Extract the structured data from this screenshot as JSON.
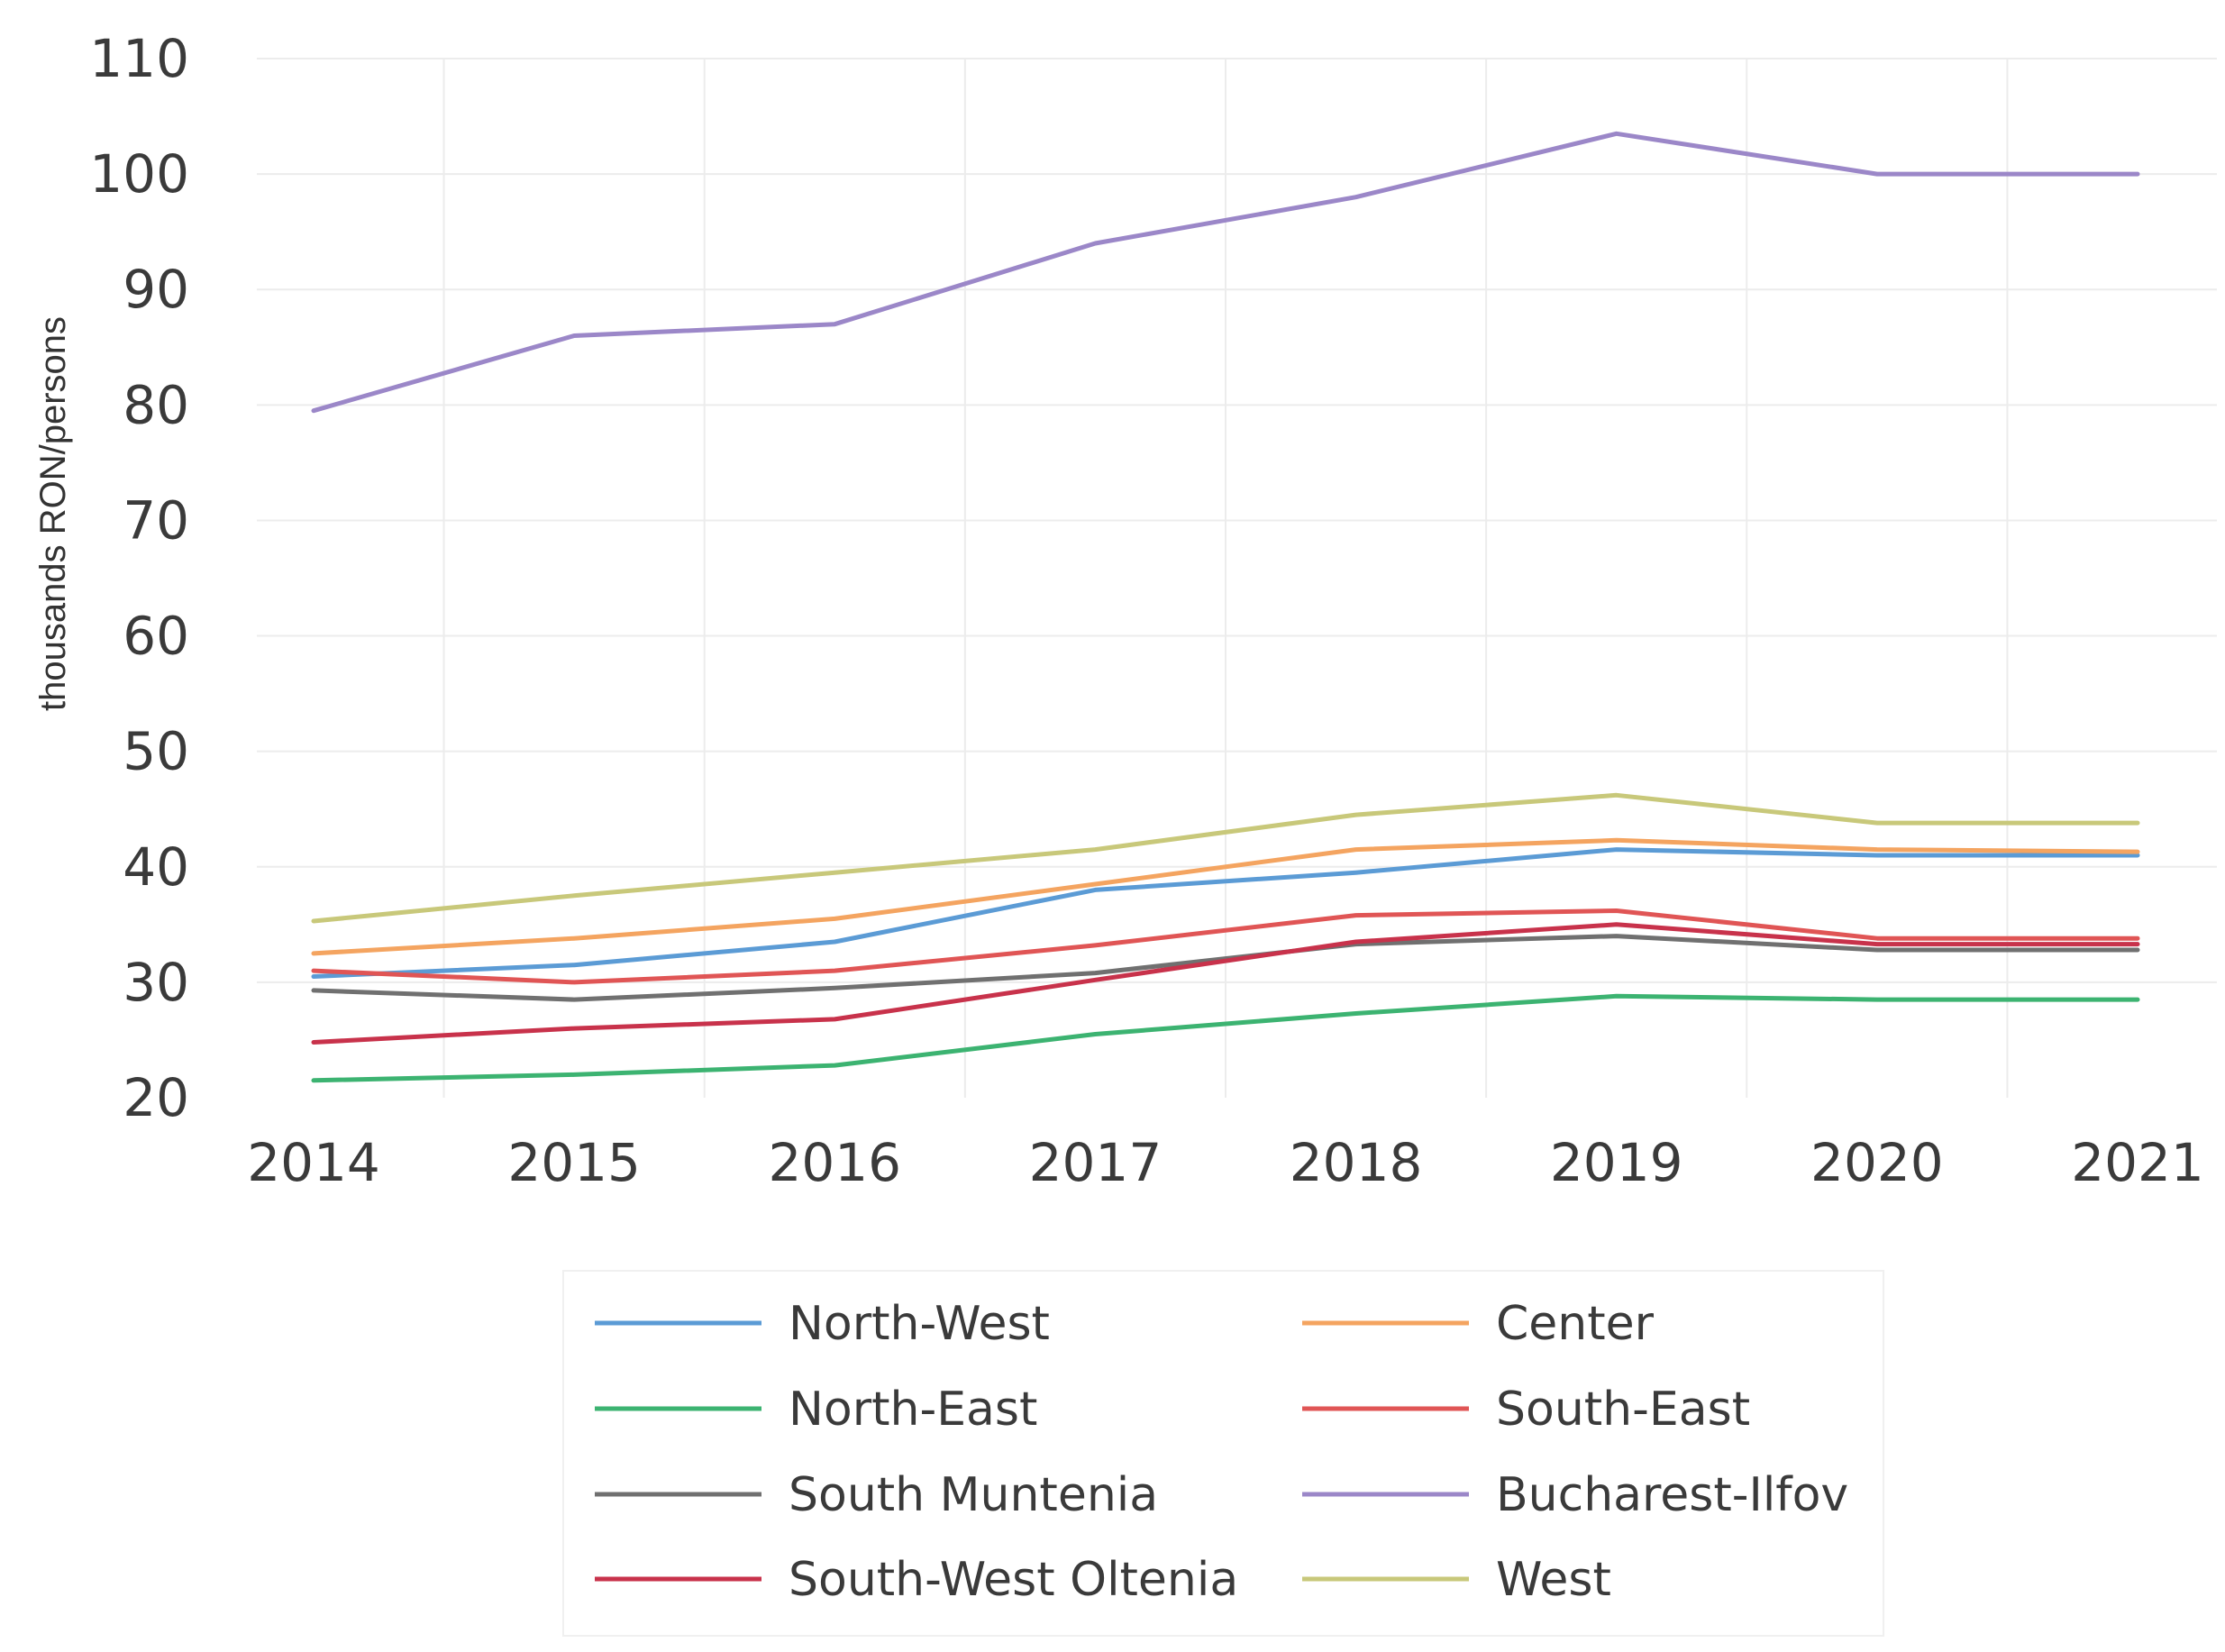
{
  "chart_data": {
    "type": "line",
    "title": "",
    "xlabel": "",
    "ylabel": "thousands RON/persons",
    "ylim": [
      20,
      110
    ],
    "yticks": [
      20,
      30,
      40,
      50,
      60,
      70,
      80,
      90,
      100,
      110
    ],
    "x": [
      "2014",
      "2015",
      "2016",
      "2017",
      "2018",
      "2019",
      "2020",
      "2021"
    ],
    "grid": true,
    "legend_position": "bottom",
    "series": [
      {
        "name": "North-West",
        "color": "#5b9bd5",
        "values": [
          30.5,
          31.5,
          33.5,
          38,
          39.5,
          41.5,
          41,
          41
        ]
      },
      {
        "name": "Center",
        "color": "#f4a460",
        "values": [
          32.5,
          33.8,
          35.5,
          38.5,
          41.5,
          42.3,
          41.5,
          41.3
        ]
      },
      {
        "name": "North-East",
        "color": "#3cb371",
        "values": [
          21.5,
          22,
          22.8,
          25.5,
          27.3,
          28.8,
          28.5,
          28.5
        ]
      },
      {
        "name": "South-East",
        "color": "#e05555",
        "values": [
          31,
          30,
          31,
          33.2,
          35.8,
          36.2,
          33.8,
          33.8
        ]
      },
      {
        "name": "South Muntenia",
        "color": "#707070",
        "values": [
          29.3,
          28.5,
          29.5,
          30.8,
          33.3,
          34,
          32.8,
          32.8
        ]
      },
      {
        "name": "Bucharest-Ilfov",
        "color": "#9b87c8",
        "values": [
          79.5,
          86,
          87,
          94,
          98,
          103.5,
          100,
          100
        ]
      },
      {
        "name": "South-West Oltenia",
        "color": "#c8324b",
        "values": [
          24.8,
          26,
          26.8,
          30.2,
          33.5,
          35,
          33.3,
          33.3
        ]
      },
      {
        "name": "West",
        "color": "#c8c87a",
        "values": [
          35.3,
          37.5,
          39.5,
          41.5,
          44.5,
          46.2,
          43.8,
          43.8
        ]
      }
    ]
  }
}
